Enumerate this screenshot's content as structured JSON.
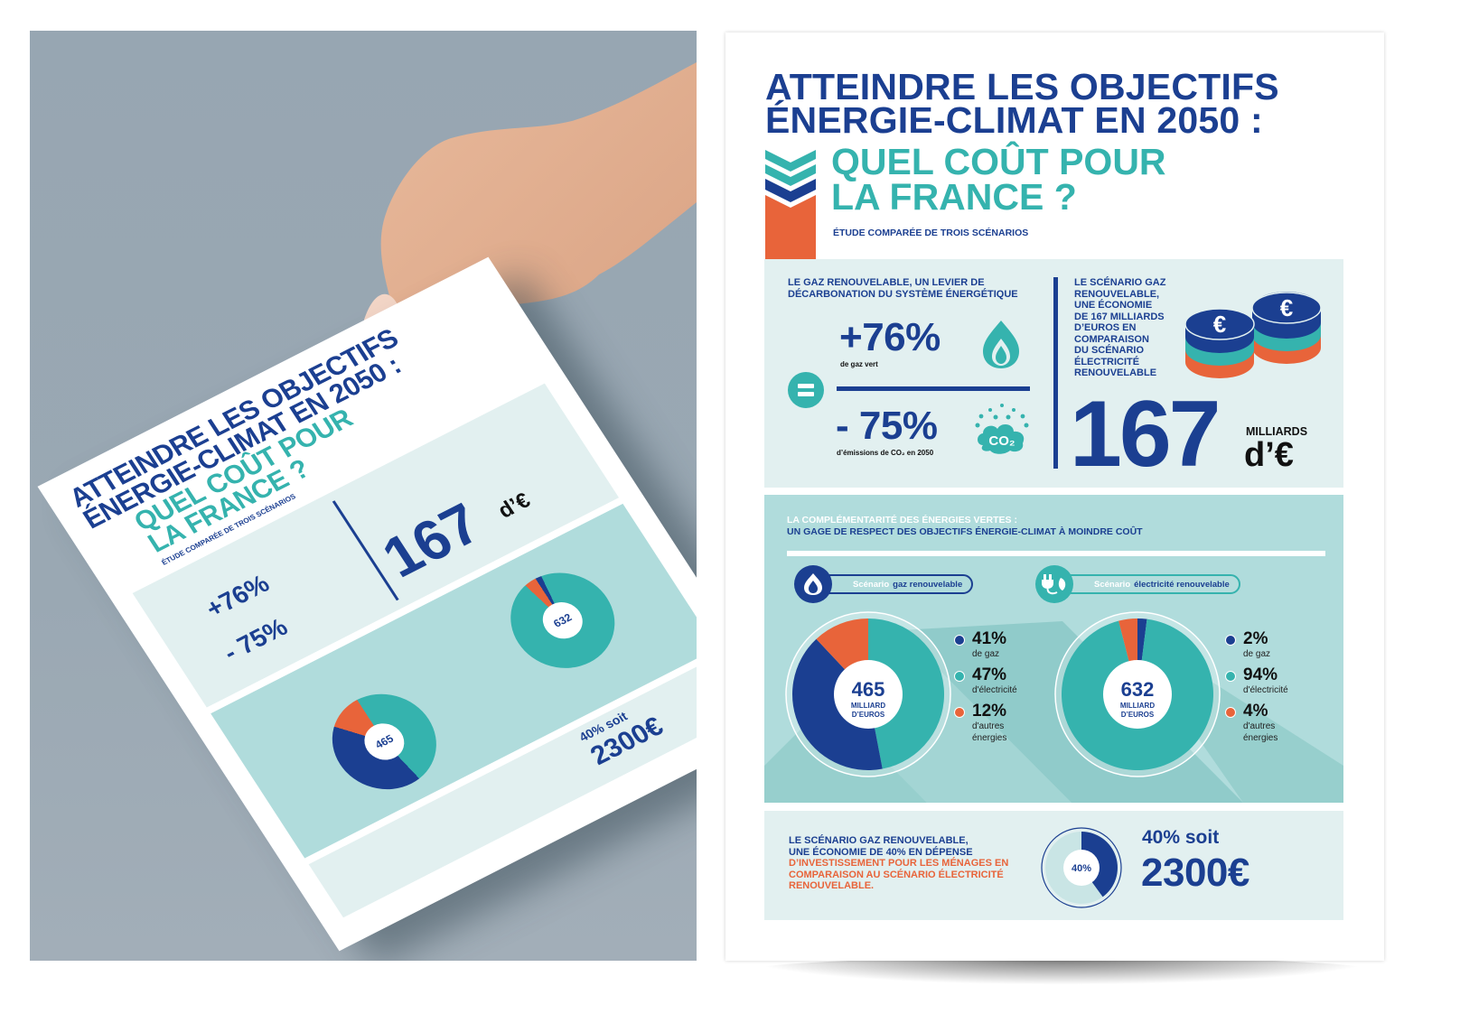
{
  "mockup": {
    "title_lines": [
      "ATTEINDRE LES OBJECTIFS",
      "ÉNERGIE-CLIMAT EN 2050 :"
    ],
    "subtitle_lines": [
      "QUEL COÛT POUR",
      "LA FRANCE ?"
    ]
  },
  "header": {
    "title_line1": "ATTEINDRE LES OBJECTIFS",
    "title_line2": "ÉNERGIE-CLIMAT EN 2050 :",
    "question_line1": "QUEL COÛT POUR",
    "question_line2": "LA FRANCE ?",
    "subtitle": "ÉTUDE COMPARÉE DE TROIS SCÉNARIOS"
  },
  "section_decarbonation": {
    "heading_line1": "LE GAZ RENOUVELABLE, UN LEVIER DE",
    "heading_line2": "DÉCARBONATION DU SYSTÈME ÉNERGÉTIQUE",
    "stat1_value": "+76%",
    "stat1_caption": "de gaz vert",
    "stat2_value": "- 75%",
    "stat2_caption": "d’émissions de CO₂ en 2050",
    "icon1": "flame-icon",
    "icon2": "co2-cloud-icon",
    "equals_icon": "equals-icon"
  },
  "section_savings": {
    "heading_lines": [
      "LE SCÉNARIO GAZ",
      "RENOUVELABLE,",
      "UNE ÉCONOMIE",
      "DE 167 MILLIARDS",
      "D’EUROS EN",
      "COMPARAISON",
      "DU SCÉNARIO",
      "ÉLECTRICITÉ",
      "RENOUVELABLE"
    ],
    "big_value": "167",
    "unit_line1": "MILLIARDS",
    "unit_line2": "d’€",
    "icon": "euro-coins-icon"
  },
  "section_complementarity": {
    "heading_line1": "LA COMPLÉMENTARITÉ DES ÉNERGIES VERTES :",
    "heading_line2": "UN GAGE DE RESPECT DES OBJECTIFS ÉNERGIE-CLIMAT À MOINDRE COÛT"
  },
  "chart_data": [
    {
      "type": "pie",
      "title": "Scénario gaz renouvelable",
      "title_prefix": "Scénario",
      "title_suffix": "gaz renouvelable",
      "center_value": "465",
      "center_label_line1": "MILLIARD",
      "center_label_line2": "D’EUROS",
      "categories": [
        "de gaz",
        "d'électricité",
        "d'autres énergies"
      ],
      "values": [
        41,
        47,
        12
      ],
      "value_labels": [
        "41%",
        "47%",
        "12%"
      ],
      "label_lines": [
        [
          "de gaz"
        ],
        [
          "d'électricité"
        ],
        [
          "d'autres",
          "énergies"
        ]
      ],
      "colors": [
        "#1b3f91",
        "#35b3ae",
        "#e8643a"
      ],
      "legend": "right"
    },
    {
      "type": "pie",
      "title": "Scénario électricité renouvelable",
      "title_prefix": "Scénario",
      "title_suffix": "électricité renouvelable",
      "center_value": "632",
      "center_label_line1": "MILLIARD",
      "center_label_line2": "D’EUROS",
      "categories": [
        "de gaz",
        "d'électricité",
        "d'autres énergies"
      ],
      "values": [
        2,
        94,
        4
      ],
      "value_labels": [
        "2%",
        "94%",
        "4%"
      ],
      "label_lines": [
        [
          "de gaz"
        ],
        [
          "d'électricité"
        ],
        [
          "d'autres",
          "énergies"
        ]
      ],
      "colors": [
        "#1b3f91",
        "#35b3ae",
        "#e8643a"
      ],
      "legend": "right"
    },
    {
      "type": "pie",
      "title": "Économie ménages",
      "center_value": "40%",
      "values": [
        40,
        60
      ],
      "colors": [
        "#1b3f91",
        "#c9e5e5"
      ]
    }
  ],
  "section_households": {
    "text_navy_line1": "LE SCÉNARIO GAZ RENOUVELABLE,",
    "text_navy_line2": "UNE ÉCONOMIE DE 40% EN DÉPENSE",
    "text_orange_line1": "D’INVESTISSEMENT POUR LES MÉNAGES EN",
    "text_orange_line2": "COMPARAISON AU SCÉNARIO ÉLECTRICITÉ",
    "text_orange_line3": "RENOUVELABLE.",
    "donut_label": "40%",
    "headline": "40% soit",
    "amount": "2300€"
  },
  "colors": {
    "navy": "#1b3f91",
    "teal": "#35b3ae",
    "orange": "#e8643a",
    "panel_light": "#e2f0f0",
    "panel_mid": "#b0dcdc"
  }
}
